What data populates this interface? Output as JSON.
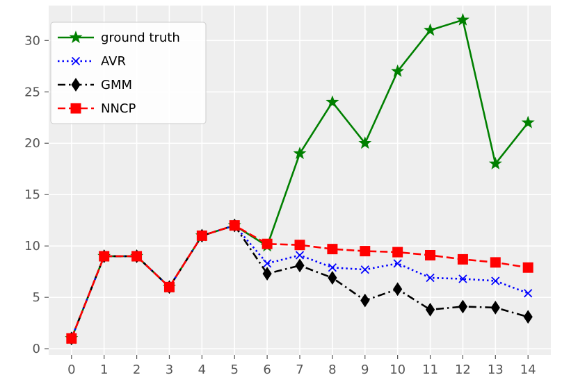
{
  "chart_data": {
    "type": "line",
    "x": [
      0,
      1,
      2,
      3,
      4,
      5,
      6,
      7,
      8,
      9,
      10,
      11,
      12,
      13,
      14
    ],
    "xticks": [
      0,
      1,
      2,
      3,
      4,
      5,
      6,
      7,
      8,
      9,
      10,
      11,
      12,
      13,
      14
    ],
    "yticks": [
      0,
      5,
      10,
      15,
      20,
      25,
      30
    ],
    "xlim": [
      -0.7,
      14.7
    ],
    "ylim": [
      -0.6,
      33.4
    ],
    "grid": true,
    "background": "#eeeeee",
    "legend_position": "top-left",
    "title": "",
    "xlabel": "",
    "ylabel": "",
    "series": [
      {
        "name": "ground truth",
        "color": "#008000",
        "linestyle": "solid",
        "marker": "star",
        "x": [
          0,
          1,
          2,
          3,
          4,
          5,
          6,
          7,
          8,
          9,
          10,
          11,
          12,
          13,
          14
        ],
        "values": [
          1,
          9,
          9,
          6,
          11,
          12,
          10,
          19,
          24,
          20,
          27,
          31,
          32,
          18,
          22
        ]
      },
      {
        "name": "AVR",
        "color": "#0000ff",
        "linestyle": "dotted",
        "marker": "x",
        "x": [
          0,
          1,
          2,
          3,
          4,
          5,
          6,
          7,
          8,
          9,
          10,
          11,
          12,
          13,
          14
        ],
        "values": [
          1,
          9,
          9,
          6,
          11,
          12,
          8.3,
          9.1,
          7.9,
          7.7,
          8.3,
          6.9,
          6.8,
          6.6,
          5.4
        ]
      },
      {
        "name": "GMM",
        "color": "#000000",
        "linestyle": "dashdot",
        "marker": "thin-diamond",
        "x": [
          0,
          1,
          2,
          3,
          4,
          5,
          6,
          7,
          8,
          9,
          10,
          11,
          12,
          13,
          14
        ],
        "values": [
          1,
          9,
          9,
          6,
          11,
          12,
          7.3,
          8.1,
          6.9,
          4.7,
          5.8,
          3.8,
          4.1,
          4.0,
          3.1
        ]
      },
      {
        "name": "NNCP",
        "color": "#ff0000",
        "linestyle": "dashed",
        "marker": "square",
        "x": [
          0,
          1,
          2,
          3,
          4,
          5,
          6,
          7,
          8,
          9,
          10,
          11,
          12,
          13,
          14
        ],
        "values": [
          1,
          9,
          9,
          6,
          11,
          12,
          10.2,
          10.1,
          9.7,
          9.5,
          9.4,
          9.1,
          8.7,
          8.4,
          7.9
        ]
      }
    ]
  }
}
